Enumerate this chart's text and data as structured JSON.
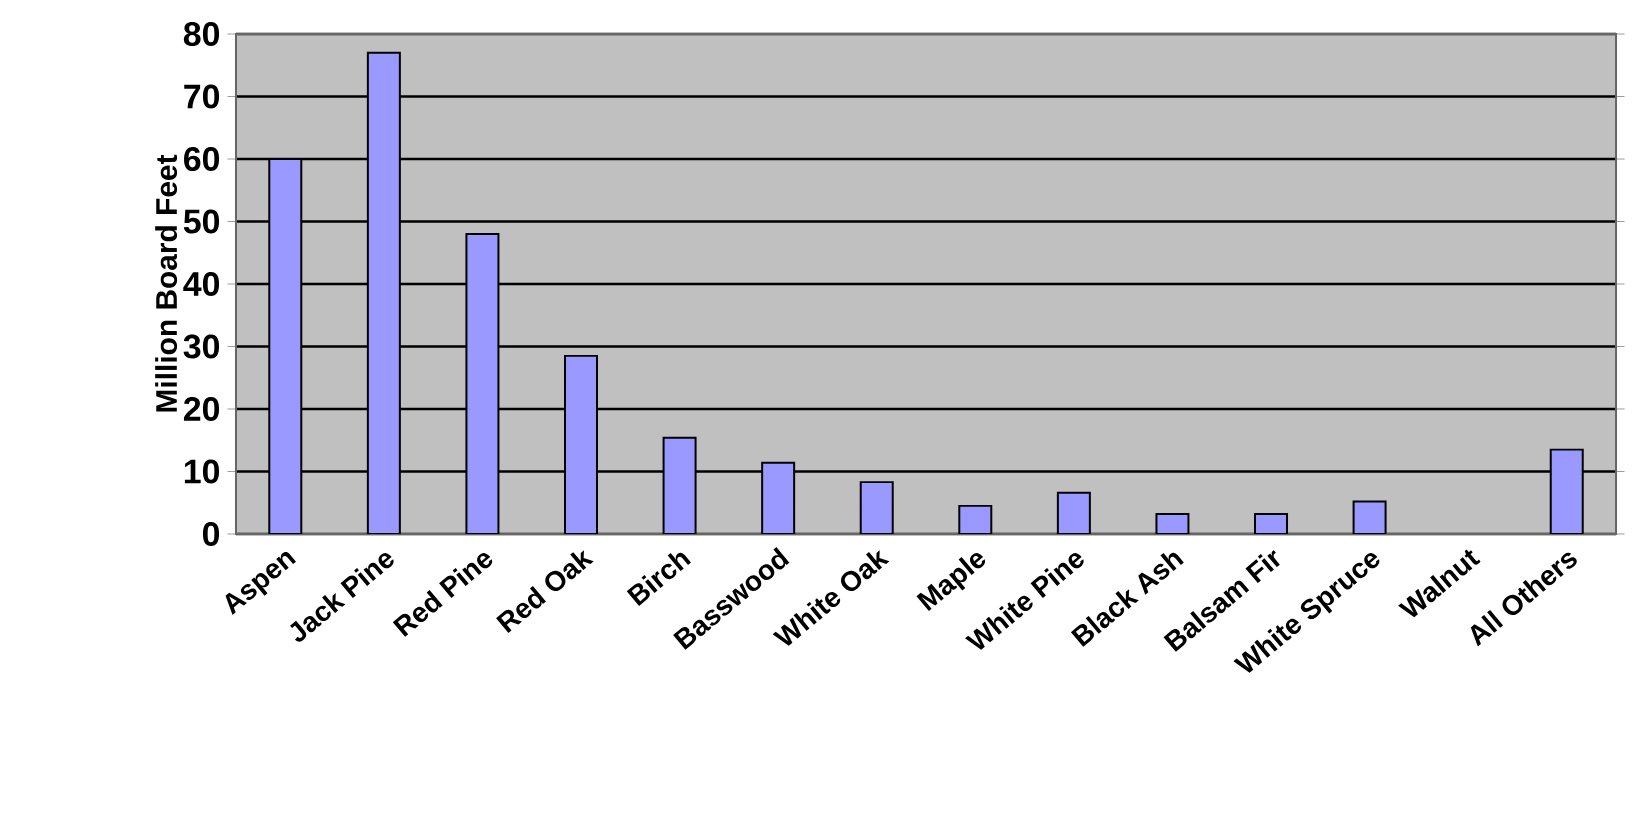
{
  "chart_data": {
    "type": "bar",
    "ylabel": "Million Board Feet",
    "categories": [
      "Aspen",
      "Jack Pine",
      "Red Pine",
      "Red Oak",
      "Birch",
      "Basswood",
      "White Oak",
      "Maple",
      "White Pine",
      "Black Ash",
      "Balsam Fir",
      "White Spruce",
      "Walnut",
      "All Others"
    ],
    "values": [
      60,
      77,
      48,
      28.5,
      15.4,
      11.4,
      8.3,
      4.5,
      6.6,
      3.2,
      3.2,
      5.2,
      null,
      13.5
    ],
    "color": "#9999ff",
    "ylim": [
      0,
      80
    ],
    "yticks": [
      0,
      10,
      20,
      30,
      40,
      50,
      60,
      70,
      80
    ],
    "grid": "y"
  }
}
